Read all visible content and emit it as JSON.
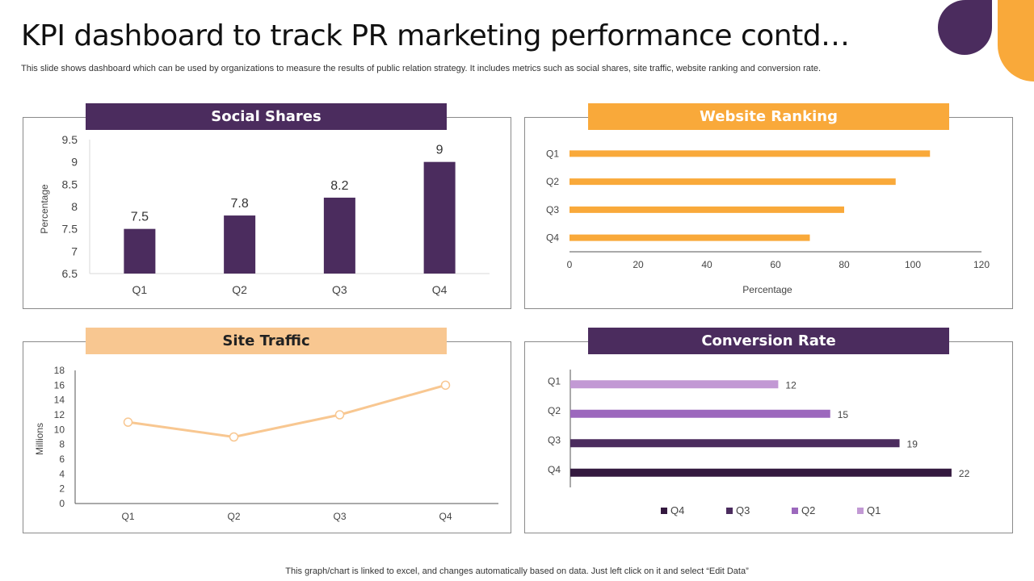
{
  "header": {
    "title": "KPI dashboard to track PR marketing performance contd…",
    "subtitle": "This slide shows dashboard which can be used by organizations to measure the results of public relation strategy. It includes metrics such as social shares, site traffic, website ranking and conversion rate."
  },
  "footer": {
    "note": "This graph/chart is linked to excel,  and changes automatically based on data. Just left click on it and select “Edit Data”"
  },
  "colors": {
    "purple": "#4b2c5e",
    "orange": "#f9a93a",
    "peach": "#f8c791",
    "q1": "#c299d4",
    "q2": "#9c68bd",
    "q3": "#4b2c5e",
    "q4": "#34193f"
  },
  "chart_data": [
    {
      "id": "social",
      "type": "bar",
      "title": "Social Shares",
      "ylabel": "Percentage",
      "categories": [
        "Q1",
        "Q2",
        "Q3",
        "Q4"
      ],
      "values": [
        7.5,
        7.8,
        8.2,
        9
      ],
      "value_labels": [
        "7.5",
        "7.8",
        "8.2",
        "9"
      ],
      "ylim": [
        6.5,
        9.5
      ],
      "yticks": [
        "6.5",
        "7",
        "7.5",
        "8",
        "8.5",
        "9",
        "9.5"
      ]
    },
    {
      "id": "ranking",
      "type": "bar",
      "orientation": "horizontal",
      "title": "Website Ranking",
      "xlabel": "Percentage",
      "categories": [
        "Q1",
        "Q2",
        "Q3",
        "Q4"
      ],
      "values": [
        105,
        95,
        80,
        70
      ],
      "xlim": [
        0,
        120
      ],
      "xticks": [
        "0",
        "20",
        "40",
        "60",
        "80",
        "100",
        "120"
      ]
    },
    {
      "id": "traffic",
      "type": "line",
      "title": "Site Traffic",
      "ylabel": "Millions",
      "categories": [
        "Q1",
        "Q2",
        "Q3",
        "Q4"
      ],
      "values": [
        11,
        9,
        12,
        16
      ],
      "ylim": [
        0,
        18
      ],
      "yticks": [
        "0",
        "2",
        "4",
        "6",
        "8",
        "10",
        "12",
        "14",
        "16",
        "18"
      ]
    },
    {
      "id": "conversion",
      "type": "bar",
      "orientation": "horizontal",
      "title": "Conversion Rate",
      "categories": [
        "Q1",
        "Q2",
        "Q3",
        "Q4"
      ],
      "values": [
        12,
        15,
        19,
        22
      ],
      "value_labels": [
        "12",
        "15",
        "19",
        "22"
      ],
      "xlim": [
        0,
        25
      ],
      "legend": [
        "Q4",
        "Q3",
        "Q2",
        "Q1"
      ],
      "legend_position": "bottom"
    }
  ]
}
